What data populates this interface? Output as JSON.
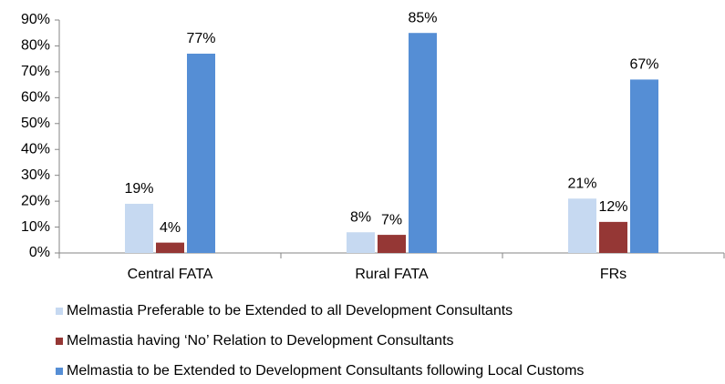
{
  "chart_data": {
    "type": "bar",
    "categories": [
      "Central FATA",
      "Rural FATA",
      "FRs"
    ],
    "series": [
      {
        "name": "Melmastia Preferable to be Extended to all Development Consultants",
        "color": "#c6d9f1",
        "values": [
          19,
          8,
          21
        ],
        "value_labels": [
          "19%",
          "8%",
          "21%"
        ]
      },
      {
        "name": "Melmastia having ‘No’ Relation to Development Consultants",
        "color": "#953735",
        "values": [
          4,
          7,
          12
        ],
        "value_labels": [
          "4%",
          "7%",
          "12%"
        ]
      },
      {
        "name": "Melmastia to be Extended to Development Consultants following Local Customs",
        "color": "#558ed5",
        "values": [
          77,
          85,
          67
        ],
        "value_labels": [
          "77%",
          "85%",
          "67%"
        ]
      }
    ],
    "ylim": [
      0,
      90
    ],
    "yticks": [
      {
        "value": 0,
        "label": "0%"
      },
      {
        "value": 10,
        "label": "10%"
      },
      {
        "value": 20,
        "label": "20%"
      },
      {
        "value": 30,
        "label": "30%"
      },
      {
        "value": 40,
        "label": "40%"
      },
      {
        "value": 50,
        "label": "50%"
      },
      {
        "value": 60,
        "label": "60%"
      },
      {
        "value": 70,
        "label": "70%"
      },
      {
        "value": 80,
        "label": "80%"
      },
      {
        "value": 90,
        "label": "90%"
      }
    ],
    "grid": false,
    "legend": "bottom"
  }
}
